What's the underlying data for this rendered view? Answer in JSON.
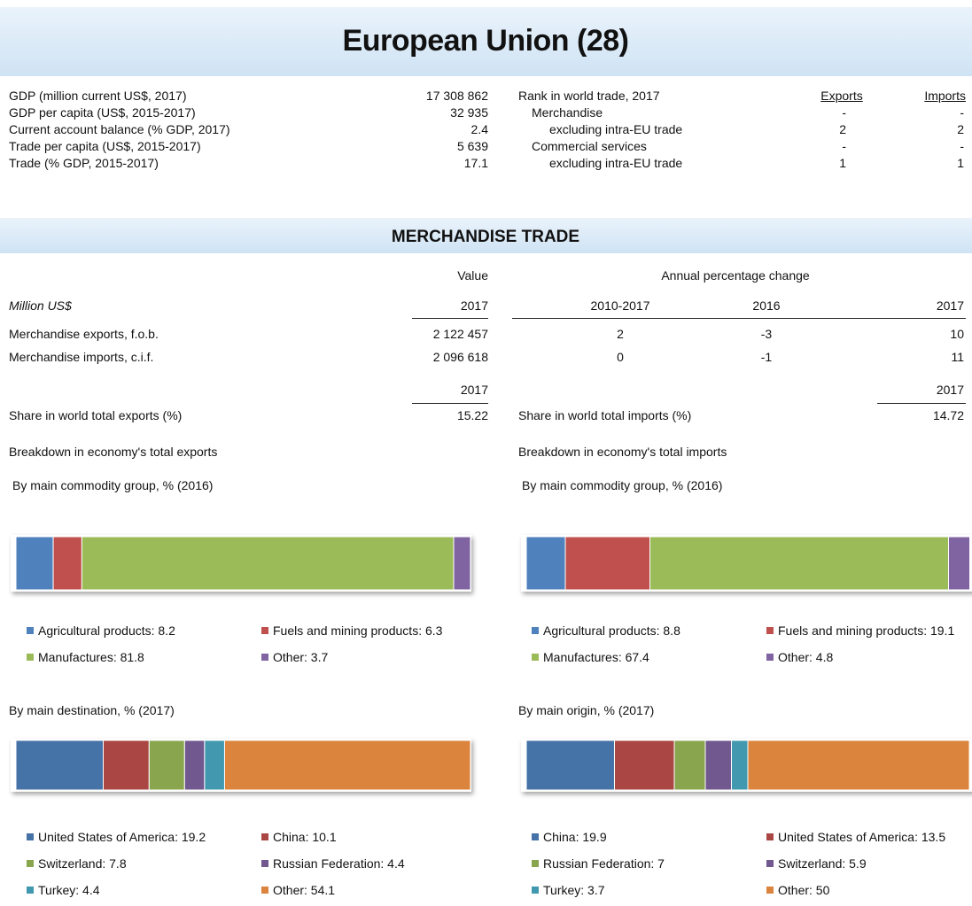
{
  "header": {
    "title": "European Union (28)"
  },
  "indicators": [
    [
      "GDP (million current US$, 2017)",
      "17 308 862"
    ],
    [
      "GDP per capita (US$, 2015-2017)",
      "32 935"
    ],
    [
      "Current account balance (% GDP, 2017)",
      "2.4"
    ],
    [
      "Trade per capita (US$, 2015-2017)",
      "5 639"
    ],
    [
      "Trade (% GDP, 2015-2017)",
      "17.1"
    ]
  ],
  "rank": {
    "title": "Rank in world trade, 2017",
    "exports_header": "Exports",
    "imports_header": "Imports",
    "rows": [
      [
        "Merchandise",
        "-",
        "-"
      ],
      [
        "excluding intra-EU trade",
        "2",
        "2"
      ],
      [
        "Commercial services",
        "-",
        "-"
      ],
      [
        "excluding intra-EU trade",
        "1",
        "1"
      ]
    ]
  },
  "section": "MERCHANDISE TRADE",
  "table": {
    "value_header": "Value",
    "change_header": "Annual percentage change",
    "unit": "Million US$",
    "columns": [
      "2017",
      "2010-2017",
      "2016",
      "2017"
    ],
    "rows": [
      [
        "Merchandise exports, f.o.b.",
        "2 122 457",
        "2",
        "-3",
        "10"
      ],
      [
        "Merchandise imports, c.i.f.",
        "2 096 618",
        "0",
        "-1",
        "11"
      ]
    ]
  },
  "share": {
    "exports": {
      "year": "2017",
      "label": "Share in world total exports (%)",
      "value": "15.22"
    },
    "imports": {
      "year": "2017",
      "label": "Share in world total imports (%)",
      "value": "14.72"
    }
  },
  "breakdown": {
    "exports": {
      "title": "Breakdown in economy's total exports",
      "charts": [
        {
          "title": "By main commodity group, % (2016)",
          "items": [
            {
              "label": "Agricultural products: 8.2",
              "value": 8.2,
              "color": "#4f81bd"
            },
            {
              "label": "Fuels and mining products: 6.3",
              "value": 6.3,
              "color": "#c0504d"
            },
            {
              "label": "Manufactures: 81.8",
              "value": 81.8,
              "color": "#9bbb59"
            },
            {
              "label": "Other: 3.7",
              "value": 3.7,
              "color": "#8064a2"
            }
          ]
        },
        {
          "title": "By main destination, % (2017)",
          "items": [
            {
              "label": "United States of America: 19.2",
              "value": 19.2,
              "color": "#4572a7"
            },
            {
              "label": "China: 10.1",
              "value": 10.1,
              "color": "#aa4643"
            },
            {
              "label": "Switzerland: 7.8",
              "value": 7.8,
              "color": "#89a54e"
            },
            {
              "label": "Russian Federation: 4.4",
              "value": 4.4,
              "color": "#71588f"
            },
            {
              "label": "Turkey: 4.4",
              "value": 4.4,
              "color": "#4198af"
            },
            {
              "label": "Other: 54.1",
              "value": 54.1,
              "color": "#db843d"
            }
          ]
        }
      ]
    },
    "imports": {
      "title": "Breakdown in economy's total imports",
      "charts": [
        {
          "title": "By main commodity group, % (2016)",
          "items": [
            {
              "label": "Agricultural products: 8.8",
              "value": 8.8,
              "color": "#4f81bd"
            },
            {
              "label": "Fuels and mining products: 19.1",
              "value": 19.1,
              "color": "#c0504d"
            },
            {
              "label": "Manufactures: 67.4",
              "value": 67.4,
              "color": "#9bbb59"
            },
            {
              "label": "Other: 4.8",
              "value": 4.8,
              "color": "#8064a2"
            }
          ]
        },
        {
          "title": "By main origin, % (2017)",
          "items": [
            {
              "label": "China: 19.9",
              "value": 19.9,
              "color": "#4572a7"
            },
            {
              "label": "United States of America: 13.5",
              "value": 13.5,
              "color": "#aa4643"
            },
            {
              "label": "Russian Federation: 7",
              "value": 7,
              "color": "#89a54e"
            },
            {
              "label": "Switzerland: 5.9",
              "value": 5.9,
              "color": "#71588f"
            },
            {
              "label": "Turkey: 3.7",
              "value": 3.7,
              "color": "#4198af"
            },
            {
              "label": "Other: 50",
              "value": 50,
              "color": "#db843d"
            }
          ]
        }
      ]
    }
  }
}
